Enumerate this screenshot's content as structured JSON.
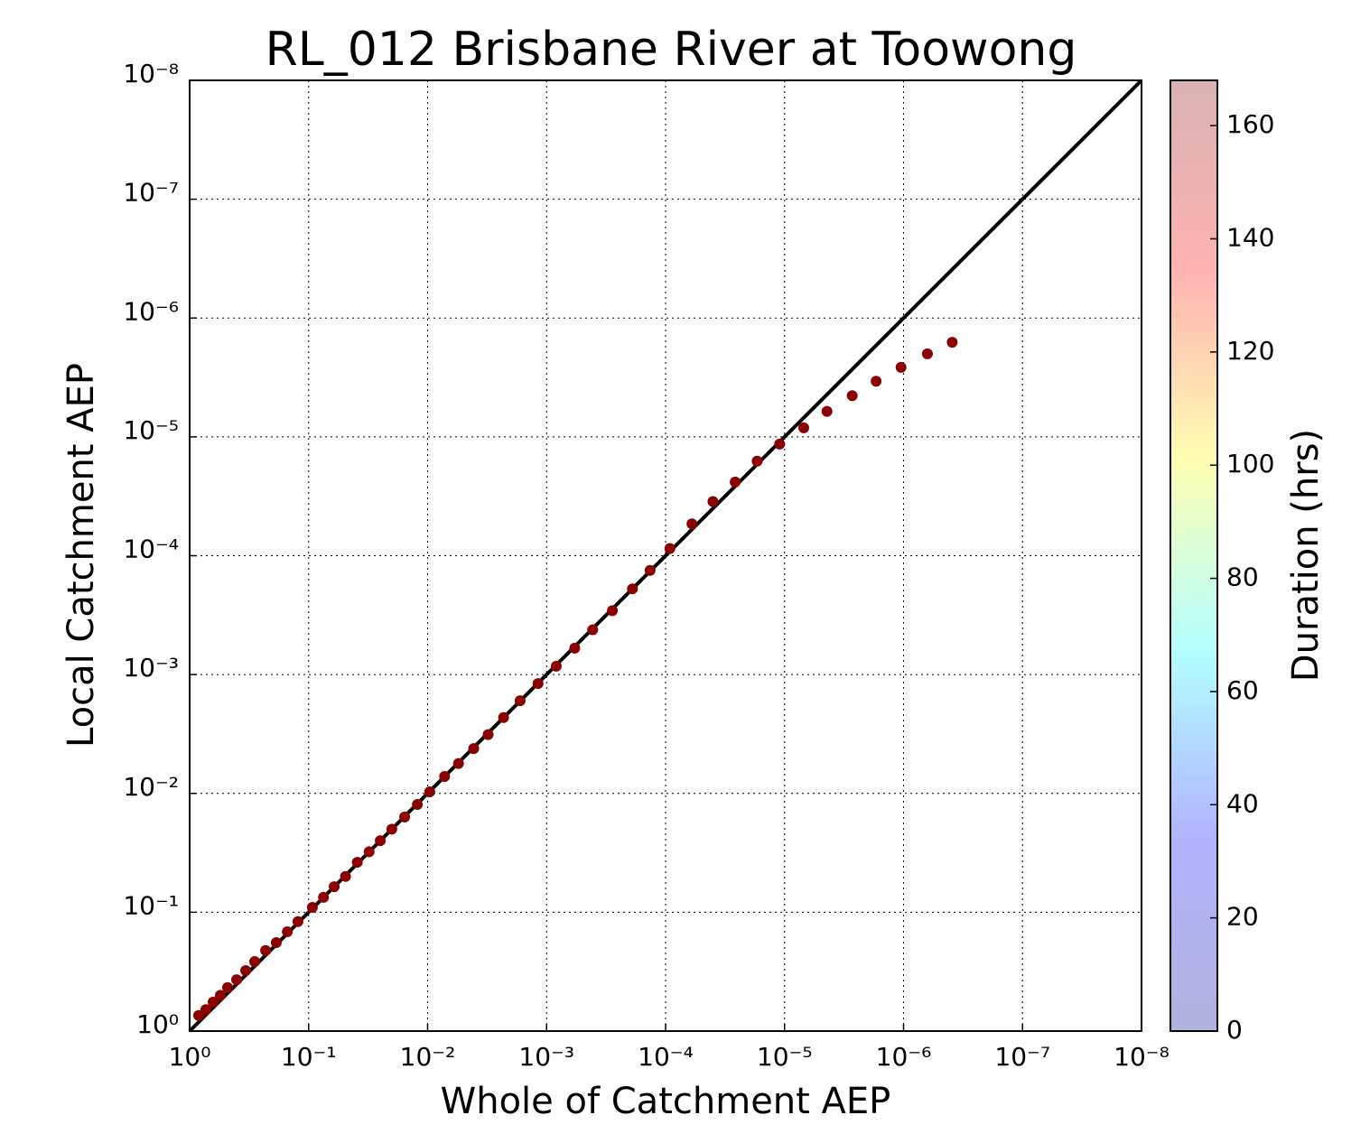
{
  "chart_data": {
    "type": "scatter",
    "title": "RL_012 Brisbane River at Toowong",
    "x_label": "Whole of Catchment AEP",
    "y_label": "Local Catchment AEP",
    "log_x": true,
    "log_y": true,
    "grid": true,
    "xlim": [
      1,
      1e-08
    ],
    "ylim": [
      1,
      1e-08
    ],
    "xticks": [
      {
        "value": 1,
        "label": "10⁰"
      },
      {
        "value": 0.1,
        "label": "10⁻¹"
      },
      {
        "value": 0.01,
        "label": "10⁻²"
      },
      {
        "value": 0.001,
        "label": "10⁻³"
      },
      {
        "value": 0.0001,
        "label": "10⁻⁴"
      },
      {
        "value": 1e-05,
        "label": "10⁻⁵"
      },
      {
        "value": 1e-06,
        "label": "10⁻⁶"
      },
      {
        "value": 1e-07,
        "label": "10⁻⁷"
      },
      {
        "value": 1e-08,
        "label": "10⁻⁸"
      }
    ],
    "yticks": [
      {
        "value": 1,
        "label": "10⁰"
      },
      {
        "value": 0.1,
        "label": "10⁻¹"
      },
      {
        "value": 0.01,
        "label": "10⁻²"
      },
      {
        "value": 0.001,
        "label": "10⁻³"
      },
      {
        "value": 0.0001,
        "label": "10⁻⁴"
      },
      {
        "value": 1e-05,
        "label": "10⁻⁵"
      },
      {
        "value": 1e-06,
        "label": "10⁻⁶"
      },
      {
        "value": 1e-07,
        "label": "10⁻⁷"
      },
      {
        "value": 1e-08,
        "label": "10⁻⁸"
      }
    ],
    "reference_line_color": "#000000",
    "point_color": "#8b0000",
    "x": [
      0.84,
      0.73,
      0.635,
      0.552,
      0.48,
      0.403,
      0.338,
      0.284,
      0.23,
      0.187,
      0.151,
      0.123,
      0.093,
      0.075,
      0.061,
      0.049,
      0.039,
      0.031,
      0.025,
      0.02,
      0.0156,
      0.0122,
      0.0096,
      0.0072,
      0.0055,
      0.0041,
      0.0031,
      0.0023,
      0.00167,
      0.00118,
      0.00083,
      0.00058,
      0.00041,
      0.00028,
      0.00019,
      0.000135,
      9.2e-05,
      6e-05,
      4e-05,
      2.6e-05,
      1.7e-05,
      1.1e-05,
      6.9e-06,
      4.4e-06,
      2.7e-06,
      1.7e-06,
      1.05e-06,
      6.3e-07,
      3.9e-07
    ],
    "y": [
      0.74,
      0.66,
      0.57,
      0.5,
      0.43,
      0.37,
      0.31,
      0.26,
      0.21,
      0.18,
      0.146,
      0.12,
      0.091,
      0.075,
      0.061,
      0.05,
      0.038,
      0.031,
      0.025,
      0.02,
      0.0158,
      0.0124,
      0.0097,
      0.0072,
      0.0056,
      0.0042,
      0.0032,
      0.0023,
      0.00166,
      0.00119,
      0.00085,
      0.0006,
      0.00042,
      0.00029,
      0.00019,
      0.000133,
      8.7e-05,
      5.4e-05,
      3.5e-05,
      2.4e-05,
      1.6e-05,
      1.15e-05,
      8.4e-06,
      6.1e-06,
      4.5e-06,
      3.4e-06,
      2.6e-06,
      2e-06,
      1.6e-06
    ],
    "colorbar": {
      "label": "Duration (hrs)",
      "lim": [
        0,
        168
      ],
      "ticks": [
        0,
        20,
        40,
        60,
        80,
        100,
        120,
        140,
        160
      ],
      "colors": [
        "#00008f",
        "#0000ff",
        "#00ffff",
        "#ffff00",
        "#ff0000",
        "#800000"
      ],
      "opacity": 0.3
    }
  }
}
